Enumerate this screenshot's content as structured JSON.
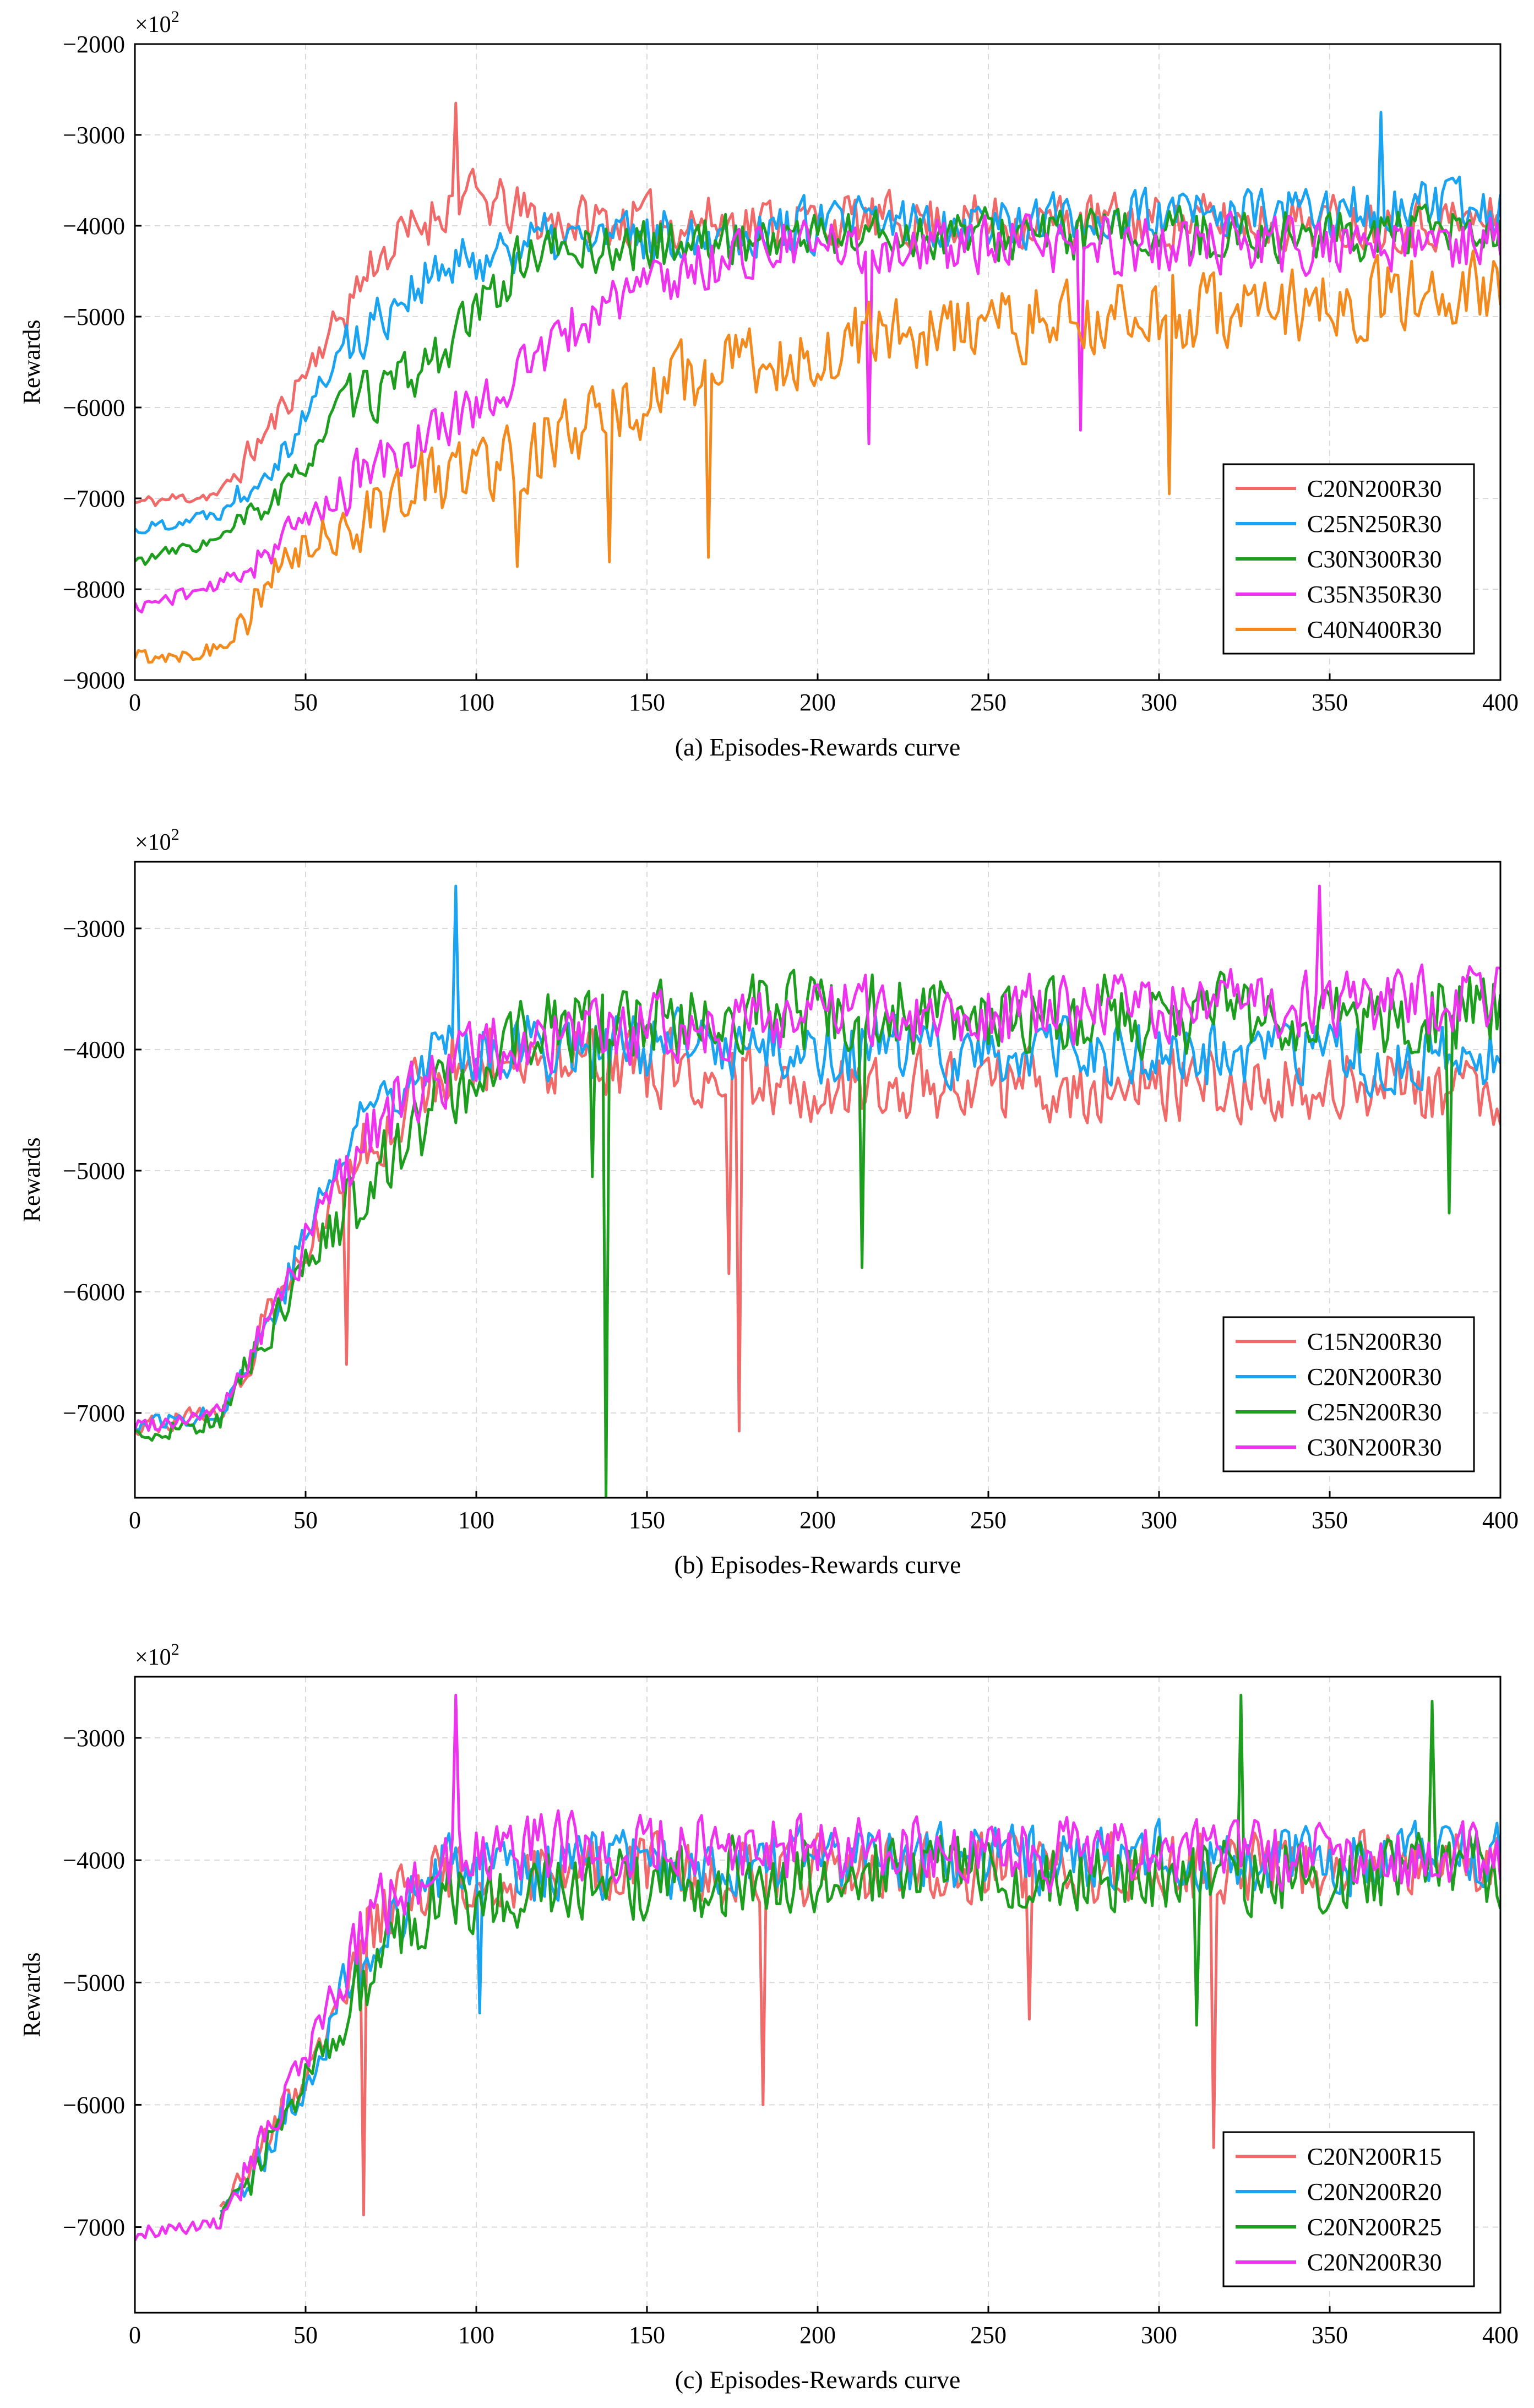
{
  "colors": {
    "red": "#f06a6a",
    "blue": "#1aa3f0",
    "green": "#1e9e1e",
    "magenta": "#ee33ee",
    "orange": "#f28a1e"
  },
  "chart_data": [
    {
      "type": "line",
      "id": "a",
      "caption": "(a) Episodes-Rewards curve",
      "ylabel": "Rewards",
      "multiplier_label": "×10",
      "multiplier_exp": "2",
      "xlim": [
        0,
        400
      ],
      "ylim": [
        -9000,
        -2000
      ],
      "xticks": [
        0,
        50,
        100,
        150,
        200,
        250,
        300,
        350,
        400
      ],
      "yticks": [
        -9000,
        -8000,
        -7000,
        -6000,
        -5000,
        -4000,
        -3000,
        -2000
      ],
      "xtick_labels": [
        "0",
        "50",
        "100",
        "150",
        "200",
        "250",
        "300",
        "350",
        "400"
      ],
      "ytick_labels": [
        "−9000",
        "−8000",
        "−7000",
        "−6000",
        "−5000",
        "−4000",
        "−3000",
        "−2000"
      ],
      "grid": true,
      "legend_position": "lower-right",
      "series": [
        {
          "name": "C20N200R30",
          "color": "#f06a6a",
          "seed": 11,
          "noise": 380,
          "keypoints": [
            [
              0,
              -7050
            ],
            [
              25,
              -6950
            ],
            [
              40,
              -6200
            ],
            [
              55,
              -5300
            ],
            [
              70,
              -4400
            ],
            [
              95,
              -3650
            ],
            [
              120,
              -3950
            ],
            [
              200,
              -3950
            ],
            [
              400,
              -3950
            ]
          ],
          "spikes": [
            [
              94,
              -2650
            ],
            [
              71,
              -4500
            ]
          ]
        },
        {
          "name": "C25N250R30",
          "color": "#1aa3f0",
          "seed": 22,
          "noise": 380,
          "keypoints": [
            [
              0,
              -7350
            ],
            [
              25,
              -7150
            ],
            [
              45,
              -6400
            ],
            [
              60,
              -5400
            ],
            [
              80,
              -4700
            ],
            [
              110,
              -4200
            ],
            [
              200,
              -4000
            ],
            [
              400,
              -3800
            ]
          ],
          "spikes": [
            [
              365,
              -2750
            ]
          ]
        },
        {
          "name": "C30N300R30",
          "color": "#1e9e1e",
          "seed": 33,
          "noise": 360,
          "keypoints": [
            [
              0,
              -7700
            ],
            [
              25,
              -7450
            ],
            [
              45,
              -6900
            ],
            [
              60,
              -6000
            ],
            [
              80,
              -5700
            ],
            [
              95,
              -5200
            ],
            [
              115,
              -4300
            ],
            [
              200,
              -4100
            ],
            [
              400,
              -4100
            ]
          ],
          "spikes": []
        },
        {
          "name": "C35N350R30",
          "color": "#ee33ee",
          "seed": 44,
          "noise": 400,
          "keypoints": [
            [
              0,
              -8200
            ],
            [
              25,
              -7950
            ],
            [
              45,
              -7400
            ],
            [
              65,
              -6800
            ],
            [
              90,
              -6200
            ],
            [
              110,
              -5700
            ],
            [
              140,
              -4800
            ],
            [
              180,
              -4250
            ],
            [
              400,
              -4200
            ]
          ],
          "spikes": [
            [
              277,
              -6250
            ],
            [
              215,
              -6400
            ]
          ]
        },
        {
          "name": "C40N400R30",
          "color": "#f28a1e",
          "seed": 55,
          "noise": 520,
          "keypoints": [
            [
              0,
              -8750
            ],
            [
              25,
              -8650
            ],
            [
              45,
              -7700
            ],
            [
              70,
              -7100
            ],
            [
              95,
              -6700
            ],
            [
              130,
              -6300
            ],
            [
              160,
              -5700
            ],
            [
              220,
              -5200
            ],
            [
              400,
              -4700
            ]
          ],
          "spikes": [
            [
              168,
              -7650
            ],
            [
              303,
              -6950
            ],
            [
              139,
              -7700
            ],
            [
              112,
              -7750
            ]
          ]
        }
      ]
    },
    {
      "type": "line",
      "id": "b",
      "caption": "(b) Episodes-Rewards curve",
      "ylabel": "Rewards",
      "multiplier_label": "×10",
      "multiplier_exp": "2",
      "xlim": [
        0,
        400
      ],
      "ylim": [
        -7700,
        -2450
      ],
      "xticks": [
        0,
        50,
        100,
        150,
        200,
        250,
        300,
        350,
        400
      ],
      "yticks": [
        -7000,
        -6000,
        -5000,
        -4000,
        -3000
      ],
      "xtick_labels": [
        "0",
        "50",
        "100",
        "150",
        "200",
        "250",
        "300",
        "350",
        "400"
      ],
      "ytick_labels": [
        "−7000",
        "−6000",
        "−5000",
        "−4000",
        "−3000"
      ],
      "grid": true,
      "legend_position": "lower-right",
      "series": [
        {
          "name": "C15N200R30",
          "color": "#f06a6a",
          "seed": 66,
          "noise": 380,
          "keypoints": [
            [
              0,
              -7100
            ],
            [
              25,
              -7000
            ],
            [
              40,
              -6200
            ],
            [
              55,
              -5400
            ],
            [
              70,
              -4700
            ],
            [
              95,
              -4000
            ],
            [
              130,
              -4100
            ],
            [
              200,
              -4300
            ],
            [
              400,
              -4300
            ]
          ],
          "spikes": [
            [
              62,
              -6600
            ],
            [
              174,
              -5850
            ],
            [
              177,
              -7150
            ]
          ]
        },
        {
          "name": "C20N200R30",
          "color": "#1aa3f0",
          "seed": 77,
          "noise": 360,
          "keypoints": [
            [
              0,
              -7100
            ],
            [
              25,
              -7000
            ],
            [
              40,
              -6200
            ],
            [
              55,
              -5200
            ],
            [
              70,
              -4400
            ],
            [
              90,
              -3950
            ],
            [
              200,
              -4000
            ],
            [
              400,
              -4100
            ]
          ],
          "spikes": [
            [
              94,
              -2650
            ]
          ]
        },
        {
          "name": "C25N200R30",
          "color": "#1e9e1e",
          "seed": 88,
          "noise": 420,
          "keypoints": [
            [
              0,
              -7200
            ],
            [
              25,
              -7050
            ],
            [
              40,
              -6300
            ],
            [
              55,
              -5600
            ],
            [
              70,
              -5000
            ],
            [
              90,
              -4400
            ],
            [
              120,
              -3800
            ],
            [
              200,
              -3700
            ],
            [
              400,
              -3700
            ]
          ],
          "spikes": [
            [
              138,
              -7700
            ],
            [
              134,
              -5050
            ],
            [
              213,
              -5800
            ],
            [
              385,
              -5350
            ]
          ]
        },
        {
          "name": "C30N200R30",
          "color": "#ee33ee",
          "seed": 99,
          "noise": 360,
          "keypoints": [
            [
              0,
              -7100
            ],
            [
              25,
              -7000
            ],
            [
              40,
              -6200
            ],
            [
              55,
              -5300
            ],
            [
              70,
              -4600
            ],
            [
              100,
              -4000
            ],
            [
              200,
              -3700
            ],
            [
              400,
              -3600
            ]
          ],
          "spikes": [
            [
              347,
              -2650
            ]
          ]
        }
      ]
    },
    {
      "type": "line",
      "id": "c",
      "caption": "(c) Episodes-Rewards curve",
      "ylabel": "Rewards",
      "multiplier_label": "×10",
      "multiplier_exp": "2",
      "xlim": [
        0,
        400
      ],
      "ylim": [
        -7700,
        -2500
      ],
      "xticks": [
        0,
        50,
        100,
        150,
        200,
        250,
        300,
        350,
        400
      ],
      "yticks": [
        -7000,
        -6000,
        -5000,
        -4000,
        -3000
      ],
      "xtick_labels": [
        "0",
        "50",
        "100",
        "150",
        "200",
        "250",
        "300",
        "350",
        "400"
      ],
      "ytick_labels": [
        "−7000",
        "−6000",
        "−5000",
        "−4000",
        "−3000"
      ],
      "grid": true,
      "legend_position": "lower-right",
      "series": [
        {
          "name": "C20N200R15",
          "color": "#f06a6a",
          "seed": 111,
          "noise": 360,
          "keypoints": [
            [
              25,
              -6900
            ],
            [
              40,
              -6200
            ],
            [
              55,
              -5500
            ],
            [
              66,
              -4600
            ],
            [
              90,
              -4100
            ],
            [
              200,
              -4100
            ],
            [
              400,
              -4050
            ]
          ],
          "spikes": [
            [
              67,
              -6900
            ],
            [
              184,
              -6000
            ],
            [
              262,
              -5300
            ],
            [
              316,
              -6350
            ],
            [
              380,
              -2800
            ]
          ]
        },
        {
          "name": "C20N200R20",
          "color": "#1aa3f0",
          "seed": 122,
          "noise": 360,
          "keypoints": [
            [
              25,
              -6900
            ],
            [
              40,
              -6300
            ],
            [
              55,
              -5500
            ],
            [
              68,
              -4800
            ],
            [
              90,
              -4100
            ],
            [
              200,
              -4000
            ],
            [
              400,
              -4000
            ]
          ],
          "spikes": [
            [
              101,
              -5250
            ]
          ]
        },
        {
          "name": "C20N200R25",
          "color": "#1e9e1e",
          "seed": 133,
          "noise": 400,
          "keypoints": [
            [
              25,
              -6950
            ],
            [
              40,
              -6300
            ],
            [
              55,
              -5600
            ],
            [
              70,
              -4800
            ],
            [
              90,
              -4300
            ],
            [
              200,
              -4100
            ],
            [
              400,
              -4100
            ]
          ],
          "spikes": [
            [
              311,
              -5350
            ],
            [
              324,
              -2650
            ],
            [
              380,
              -2700
            ]
          ]
        },
        {
          "name": "C20N200R30",
          "color": "#ee33ee",
          "seed": 144,
          "noise": 360,
          "keypoints": [
            [
              0,
              -7050
            ],
            [
              25,
              -6950
            ],
            [
              40,
              -6200
            ],
            [
              55,
              -5300
            ],
            [
              70,
              -4400
            ],
            [
              95,
              -3900
            ],
            [
              200,
              -3900
            ],
            [
              400,
              -4000
            ]
          ],
          "spikes": [
            [
              94,
              -2650
            ]
          ]
        }
      ]
    }
  ]
}
